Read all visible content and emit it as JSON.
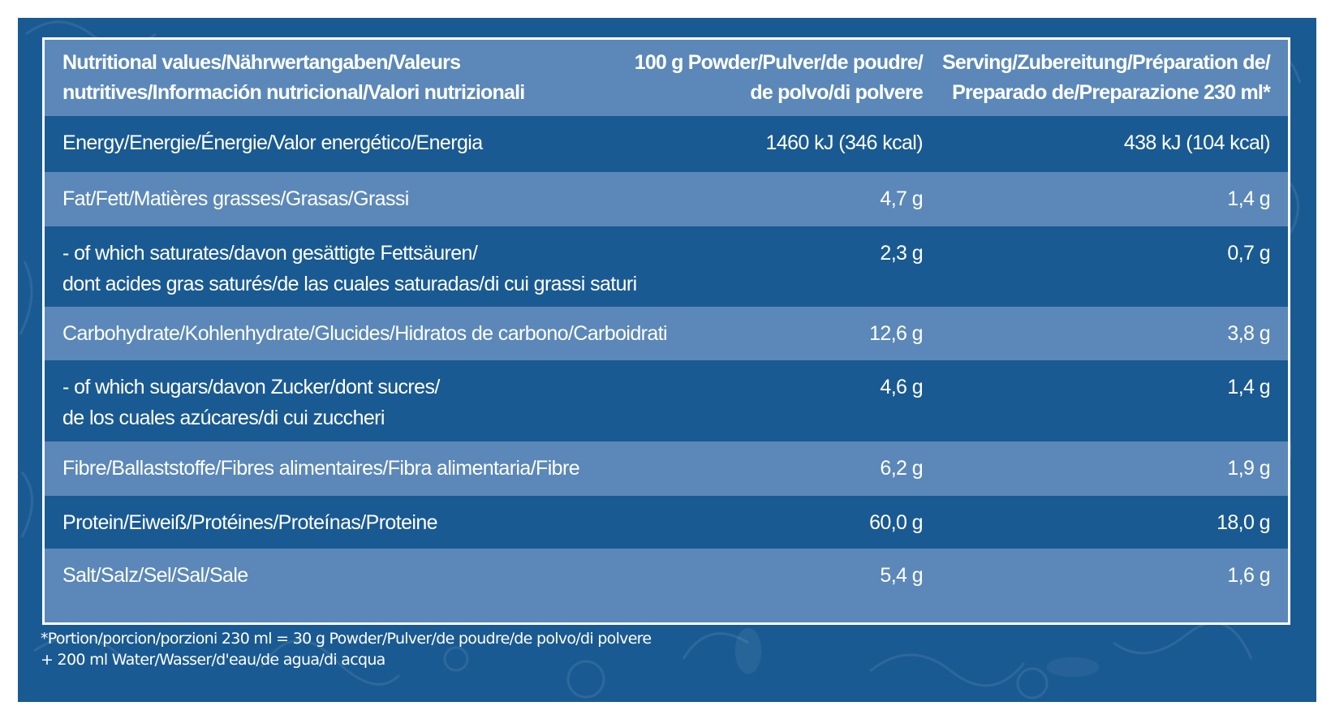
{
  "header": {
    "label_lines": [
      "Nutritional values/Nährwertangaben/Valeurs",
      "nutritives/Información nutricional/Valori nutrizionali"
    ],
    "per100_lines": [
      "100 g Powder/Pulver/de poudre/",
      "de polvo/di polvere"
    ],
    "serving_lines": [
      "Serving/Zubereitung/Préparation de/",
      "Preparado de/Preparazione 230 ml*"
    ]
  },
  "rows": [
    {
      "label_lines": [
        "Energy/Energie/Énergie/Valor energético/Energia"
      ],
      "per100": "1460 kJ (346 kcal)",
      "serving": "438 kJ  (104 kcal)"
    },
    {
      "label_lines": [
        "Fat/Fett/Matières grasses/Grasas/Grassi"
      ],
      "per100": "4,7 g",
      "serving": "1,4 g"
    },
    {
      "label_lines": [
        "- of which saturates/davon gesättigte Fettsäuren/",
        "dont acides gras saturés/de las cuales saturadas/di cui grassi saturi"
      ],
      "per100": "2,3 g",
      "serving": "0,7 g"
    },
    {
      "label_lines": [
        "Carbohydrate/Kohlenhydrate/Glucides/Hidratos de carbono/Carboidrati"
      ],
      "per100": "12,6 g",
      "serving": "3,8 g"
    },
    {
      "label_lines": [
        "- of which sugars/davon Zucker/dont sucres/",
        "de los cuales azúcares/di cui zuccheri"
      ],
      "per100": "4,6 g",
      "serving": "1,4 g"
    },
    {
      "label_lines": [
        "Fibre/Ballaststoffe/Fibres alimentaires/Fibra alimentaria/Fibre"
      ],
      "per100": "6,2 g",
      "serving": "1,9 g"
    },
    {
      "label_lines": [
        "Protein/Eiweiß/Protéines/Proteínas/Proteine"
      ],
      "per100": "60,0 g",
      "serving": "18,0 g"
    },
    {
      "label_lines": [
        "Salt/Salz/Sel/Sal/Sale"
      ],
      "per100": "5,4 g",
      "serving": "1,6 g"
    }
  ],
  "footnote_lines": [
    "*Portion/porcion/porzioni 230 ml = 30 g Powder/Pulver/de poudre/de polvo/di polvere",
    "+ 200 ml Water/Wasser/d'eau/de agua/di acqua"
  ],
  "colors": {
    "background": "#1a5a92",
    "light_row": "#5b88b8",
    "text": "#ffffff"
  }
}
